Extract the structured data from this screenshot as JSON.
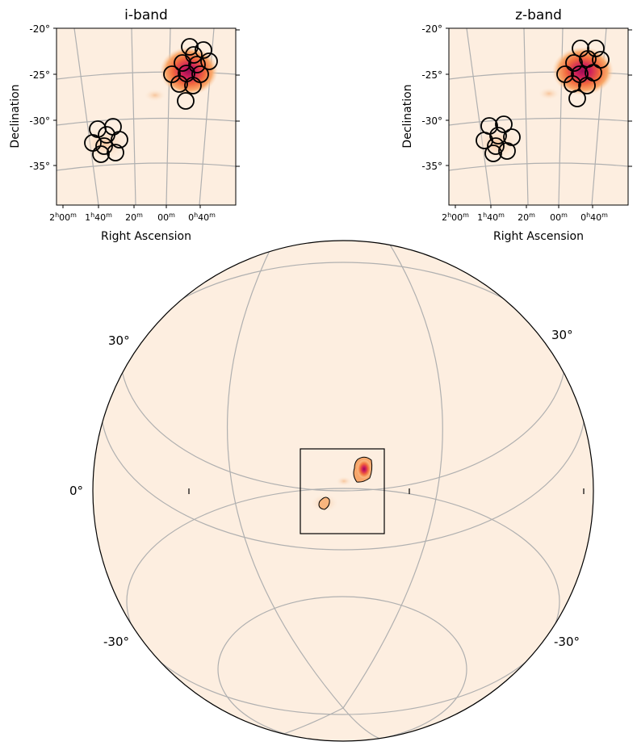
{
  "panels": [
    {
      "title": "i-band",
      "xlabel": "Right Ascension",
      "ylabel": "Declination",
      "yticks": [
        "-20°",
        "-25°",
        "-30°",
        "-35°"
      ],
      "xticks": [
        {
          "h": "2",
          "hu": "h",
          "m": "00",
          "mu": "m"
        },
        {
          "h": "1",
          "hu": "h",
          "m": "40",
          "mu": "m"
        },
        {
          "h": "",
          "hu": "",
          "m": "20",
          "mu": "m"
        },
        {
          "h": "",
          "hu": "",
          "m": "00",
          "mu": "m"
        },
        {
          "h": "0",
          "hu": "h",
          "m": "40",
          "mu": "m"
        }
      ]
    },
    {
      "title": "z-band",
      "xlabel": "Right Ascension",
      "ylabel": "Declination",
      "yticks": [
        "-20°",
        "-25°",
        "-30°",
        "-35°"
      ],
      "xticks": [
        {
          "h": "2",
          "hu": "h",
          "m": "00",
          "mu": "m"
        },
        {
          "h": "1",
          "hu": "h",
          "m": "40",
          "mu": "m"
        },
        {
          "h": "",
          "hu": "",
          "m": "20",
          "mu": "m"
        },
        {
          "h": "",
          "hu": "",
          "m": "00",
          "mu": "m"
        },
        {
          "h": "0",
          "hu": "h",
          "m": "40",
          "mu": "m"
        }
      ]
    }
  ],
  "globe": {
    "lat_labels_left": [
      "30°",
      "0°",
      "-30°"
    ],
    "lat_labels_right": [
      "30°",
      "-30°"
    ]
  },
  "colors": {
    "map_background": "#fdeee0",
    "grid": "#b0b0b0",
    "hotspot_core": "#c0185a",
    "hotspot_mid": "#f07840",
    "hotspot_outer": "#f7b77f",
    "pointing_circle": "#000000"
  }
}
